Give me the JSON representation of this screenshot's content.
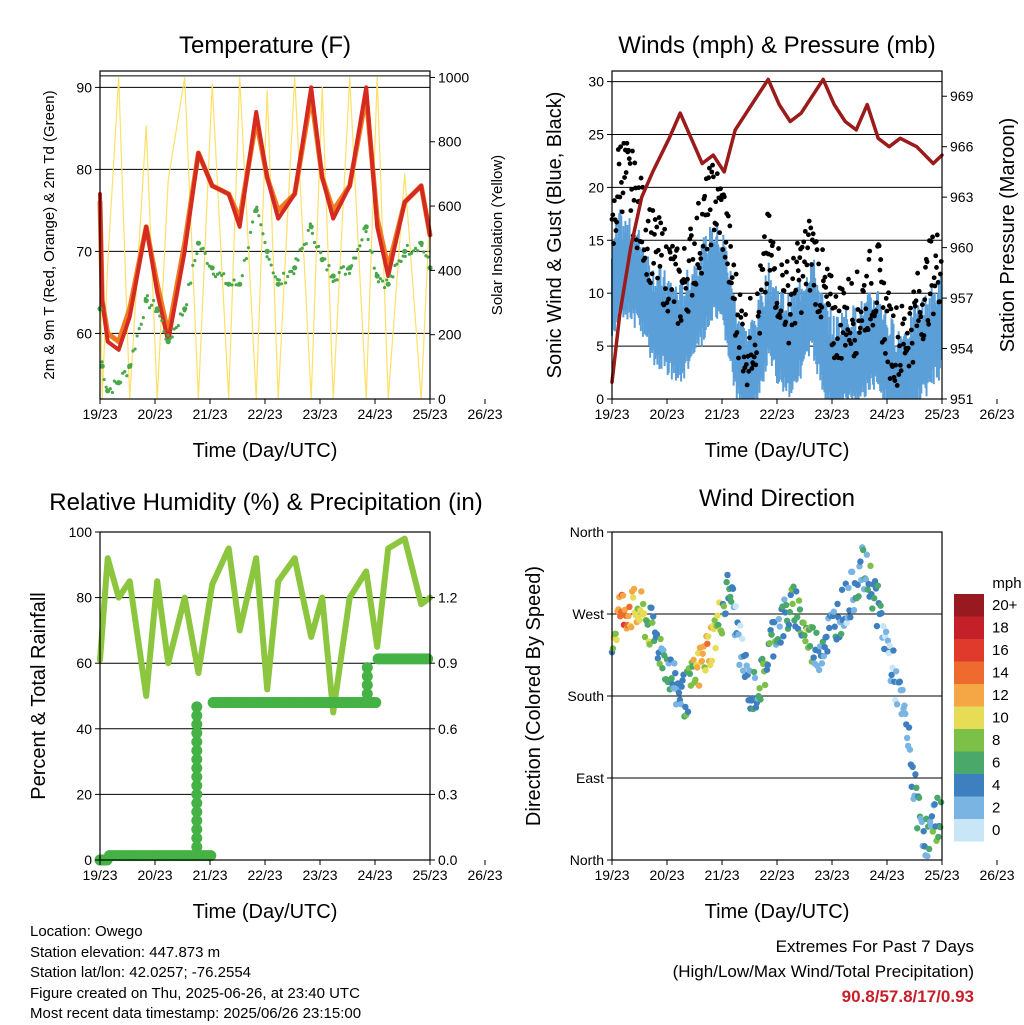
{
  "x_ticks": [
    "19/23",
    "20/23",
    "21/23",
    "22/23",
    "23/23",
    "24/23",
    "25/23",
    "26/23"
  ],
  "colors": {
    "temp2m": "#d42a20",
    "temp9m": "#f07a20",
    "dewpoint": "#4aa84a",
    "solar": "#ffe066",
    "wind": "#5b9fd8",
    "gust": "#000000",
    "pressure": "#9b1a1a",
    "rh": "#8cc63f",
    "precip": "#44b244",
    "extremes": "#c8202a"
  },
  "chart_data": [
    {
      "id": "temperature",
      "type": "line",
      "title": "Temperature (F)",
      "xlabel": "Time (Day/UTC)",
      "ylabel_left": "2m & 9m T (Red, Orange) & 2m Td (Green)",
      "ylabel_right": "Solar Insolation (Yellow)",
      "ylim_left": [
        52,
        92
      ],
      "ylim_right": [
        0,
        1020
      ],
      "yticks_left": [
        60,
        70,
        80,
        90
      ],
      "yticks_right": [
        0,
        200,
        400,
        600,
        800,
        1000
      ],
      "x": [
        19.96,
        20.0,
        20.1,
        20.3,
        20.5,
        20.8,
        21.0,
        21.2,
        21.5,
        21.75,
        22.0,
        22.3,
        22.5,
        22.8,
        23.0,
        23.2,
        23.5,
        23.8,
        24.0,
        24.2,
        24.5,
        24.8,
        25.0,
        25.2,
        25.5,
        25.8,
        25.96
      ],
      "series": [
        {
          "name": "2m T",
          "values": [
            77,
            64,
            59,
            58,
            62,
            73,
            65,
            59,
            70,
            82,
            78,
            77,
            73,
            87,
            79,
            74,
            77,
            90,
            79,
            74,
            78,
            90,
            73,
            67,
            76,
            78,
            72
          ]
        },
        {
          "name": "9m T",
          "values": [
            76,
            64,
            60,
            59,
            63,
            73,
            66,
            60,
            71,
            82,
            78,
            77,
            74,
            86,
            79,
            75,
            77,
            89,
            79,
            75,
            78,
            89,
            74,
            68,
            76,
            78,
            72
          ]
        },
        {
          "name": "2m Td",
          "values": [
            63,
            56,
            53,
            54,
            56,
            64,
            63,
            59,
            63,
            71,
            68,
            66,
            66,
            75,
            70,
            66,
            68,
            73,
            69,
            67,
            68,
            73,
            67,
            66,
            70,
            71,
            68
          ]
        },
        {
          "name": "Solar",
          "values": [
            600,
            0,
            420,
            1000,
            0,
            850,
            0,
            680,
            1000,
            0,
            980,
            0,
            1000,
            0,
            960,
            0,
            1000,
            0,
            970,
            0,
            1000,
            0,
            1000,
            0,
            700,
            0,
            600
          ]
        }
      ]
    },
    {
      "id": "winds",
      "type": "scatter",
      "title": "Winds (mph) & Pressure (mb)",
      "xlabel": "Time (Day/UTC)",
      "ylabel_left": "Sonic Wind & Gust (Blue, Black)",
      "ylabel_right": "Station Pressure (Maroon)",
      "ylim_left": [
        0,
        31
      ],
      "ylim_right": [
        951,
        970.5
      ],
      "yticks_left": [
        0,
        5,
        10,
        15,
        20,
        25,
        30
      ],
      "yticks_right": [
        951,
        954,
        957,
        960,
        963,
        966,
        969
      ],
      "x": [
        19.96,
        20.1,
        20.3,
        20.5,
        20.7,
        21.0,
        21.2,
        21.4,
        21.6,
        21.8,
        22.0,
        22.2,
        22.4,
        22.6,
        22.8,
        23.0,
        23.2,
        23.4,
        23.6,
        23.8,
        24.0,
        24.2,
        24.4,
        24.6,
        24.8,
        25.0,
        25.2,
        25.5,
        25.8,
        25.96
      ],
      "series": [
        {
          "name": "Wind",
          "values": [
            10,
            13,
            12,
            11,
            8,
            7,
            6,
            8,
            10,
            12,
            11,
            5,
            2,
            4,
            8,
            6,
            5,
            7,
            9,
            5,
            3,
            4,
            4,
            5,
            6,
            3,
            2,
            4,
            6,
            7
          ]
        },
        {
          "name": "Gust",
          "values": [
            14,
            22,
            20,
            17,
            14,
            12,
            10,
            13,
            16,
            19,
            17,
            9,
            5,
            7,
            14,
            11,
            9,
            12,
            14,
            10,
            7,
            8,
            8,
            10,
            11,
            6,
            5,
            8,
            12,
            13
          ]
        },
        {
          "name": "Pressure",
          "values": [
            952.0,
            956.0,
            960.0,
            963.0,
            964.5,
            966.5,
            968.0,
            966.5,
            965.0,
            965.5,
            964.5,
            967.0,
            968.0,
            969.0,
            970.0,
            968.5,
            967.5,
            968.0,
            969.0,
            970.0,
            968.5,
            967.5,
            967.0,
            968.5,
            966.5,
            966.0,
            966.5,
            966.0,
            965.0,
            965.5
          ]
        }
      ]
    },
    {
      "id": "humidity",
      "type": "line",
      "title": "Relative Humidity (%) & Precipitation (in)",
      "xlabel": "Time (Day/UTC)",
      "ylabel_left": "Percent & Total Rainfall",
      "ylim_left": [
        0,
        100
      ],
      "ylim_right": [
        0,
        1.5
      ],
      "yticks_left": [
        0,
        20,
        40,
        60,
        80,
        100
      ],
      "yticks_right": [
        0.0,
        0.3,
        0.6,
        0.9,
        1.2
      ],
      "yticks_right_labels": [
        "0.0",
        "0.3",
        "0.6",
        "0.9",
        "1.2"
      ],
      "x": [
        19.96,
        20.1,
        20.3,
        20.5,
        20.8,
        21.0,
        21.2,
        21.5,
        21.75,
        22.0,
        22.3,
        22.5,
        22.8,
        23.0,
        23.2,
        23.5,
        23.8,
        24.0,
        24.2,
        24.5,
        24.8,
        25.0,
        25.2,
        25.5,
        25.8,
        25.96
      ],
      "series": [
        {
          "name": "RH",
          "values": [
            61,
            92,
            80,
            85,
            50,
            85,
            60,
            80,
            57,
            84,
            95,
            70,
            92,
            52,
            85,
            92,
            68,
            80,
            45,
            80,
            88,
            65,
            95,
            98,
            78,
            80
          ]
        },
        {
          "name": "Precip",
          "values": [
            0.0,
            0.02,
            0.02,
            0.02,
            0.02,
            0.02,
            0.02,
            0.02,
            0.02,
            0.72,
            0.72,
            0.72,
            0.72,
            0.72,
            0.72,
            0.72,
            0.72,
            0.72,
            0.72,
            0.72,
            0.72,
            0.92,
            0.92,
            0.92,
            0.92,
            0.92
          ]
        }
      ]
    },
    {
      "id": "direction",
      "type": "scatter",
      "title": "Wind Direction",
      "xlabel": "Time (Day/UTC)",
      "ylabel_left": "Direction (Colored By Speed)",
      "ylim_left": [
        0,
        360
      ],
      "yticks_left": [
        0,
        90,
        180,
        270,
        360
      ],
      "ytick_labels": [
        "North",
        "East",
        "South",
        "West",
        "North"
      ],
      "legend_title": "mph",
      "legend_labels": [
        "20+",
        "18",
        "16",
        "14",
        "12",
        "10",
        "8",
        "6",
        "4",
        "2",
        "0"
      ],
      "legend_colors": [
        "#98191f",
        "#c4202a",
        "#e03a2c",
        "#ef6a2e",
        "#f5a746",
        "#e6dc55",
        "#7dc047",
        "#4aa86a",
        "#3e7fbf",
        "#7ab4e2",
        "#c8e6f8"
      ],
      "x": [
        19.96,
        20.1,
        20.3,
        20.5,
        20.7,
        20.9,
        21.1,
        21.3,
        21.5,
        21.7,
        21.9,
        22.1,
        22.3,
        22.5,
        22.7,
        22.9,
        23.1,
        23.3,
        23.5,
        23.7,
        23.9,
        24.1,
        24.3,
        24.5,
        24.7,
        24.9,
        25.1,
        25.3,
        25.5,
        25.7,
        25.96
      ],
      "values": [
        240,
        275,
        275,
        270,
        250,
        225,
        190,
        180,
        205,
        230,
        260,
        300,
        230,
        180,
        200,
        250,
        265,
        280,
        245,
        230,
        250,
        270,
        290,
        320,
        300,
        250,
        200,
        150,
        60,
        20,
        60
      ],
      "speeds": [
        6,
        14,
        12,
        10,
        6,
        5,
        4,
        6,
        10,
        12,
        8,
        5,
        2,
        3,
        6,
        5,
        4,
        6,
        8,
        4,
        3,
        4,
        3,
        4,
        6,
        3,
        2,
        3,
        4,
        4,
        6
      ]
    }
  ],
  "info": {
    "location": "Location: Owego",
    "elevation": "Station elevation: 447.873 m",
    "latlon": "Station lat/lon: 42.0257; -76.2554",
    "created": "Figure created on Thu, 2025-06-26, at 23:40 UTC",
    "recent": "Most recent data timestamp: 2025/06/26 23:15:00"
  },
  "extremes": {
    "line1": "Extremes For Past 7 Days",
    "line2": "(High/Low/Max Wind/Total Precipitation)",
    "values": "90.8/57.8/17/0.93"
  }
}
